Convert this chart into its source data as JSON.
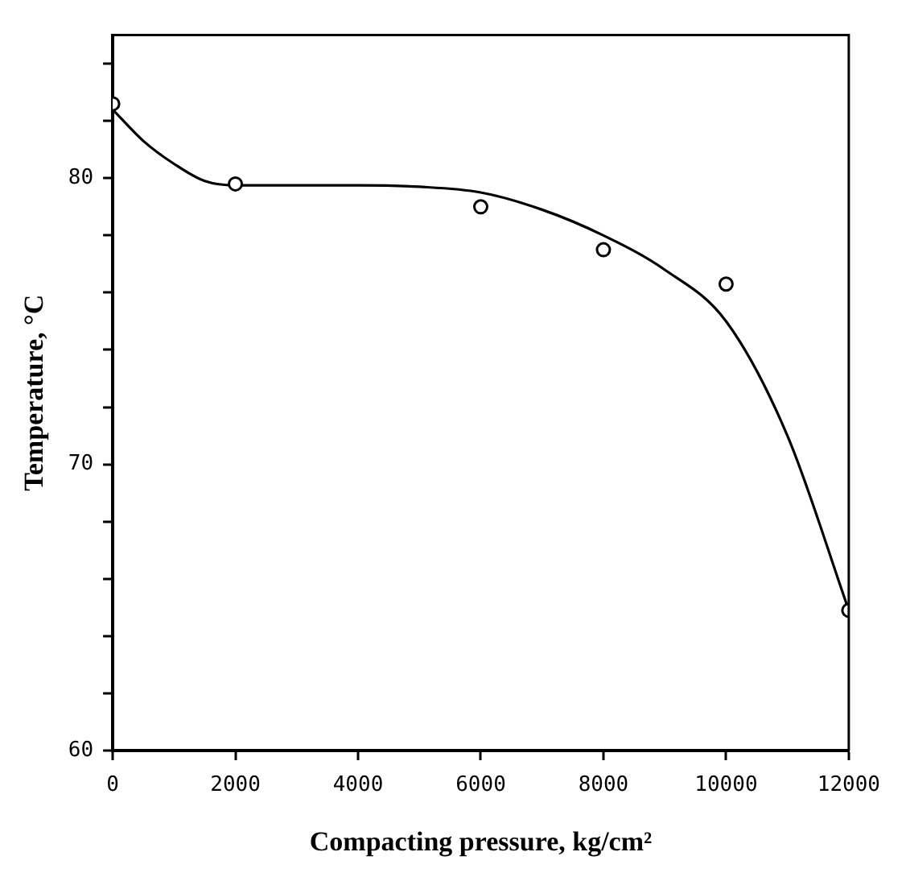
{
  "chart_data": {
    "type": "scatter",
    "xlabel": "Compacting pressure, kg/cm²",
    "ylabel": "Temperature, °C",
    "xlim": [
      0,
      12000
    ],
    "xticks": [
      0,
      2000,
      4000,
      6000,
      8000,
      10000,
      12000
    ],
    "ylim": [
      60,
      85
    ],
    "yticks": [
      60,
      {
        "value": 62,
        "label": null
      },
      {
        "value": 64,
        "label": null
      },
      {
        "value": 66,
        "label": null
      },
      {
        "value": 68,
        "label": null
      },
      70,
      {
        "value": 72,
        "label": null
      },
      {
        "value": 74,
        "label": null
      },
      {
        "value": 76,
        "label": null
      },
      {
        "value": 78,
        "label": null
      },
      80,
      {
        "value": 82,
        "label": null
      },
      {
        "value": 84,
        "label": null
      }
    ],
    "grid": false,
    "legend": false,
    "marker": "circle",
    "series": [
      {
        "color": "#000000",
        "x": [
          0,
          2000,
          6000,
          8000,
          10000,
          12000
        ],
        "values": [
          82.6,
          79.8,
          79.0,
          77.5,
          76.3,
          64.9
        ]
      },
      {
        "type": "line",
        "color": "#000000",
        "marker": "none",
        "line_style": "solid",
        "x": [
          0,
          500,
          1000,
          1500,
          2000,
          3000,
          4000,
          5000,
          6000,
          7000,
          8000,
          9000,
          10000,
          11000,
          12000
        ],
        "values": [
          82.4,
          81.3,
          80.5,
          79.9,
          79.75,
          79.75,
          79.75,
          79.7,
          79.5,
          78.9,
          78.0,
          76.8,
          75.0,
          71.0,
          64.9
        ]
      }
    ]
  }
}
